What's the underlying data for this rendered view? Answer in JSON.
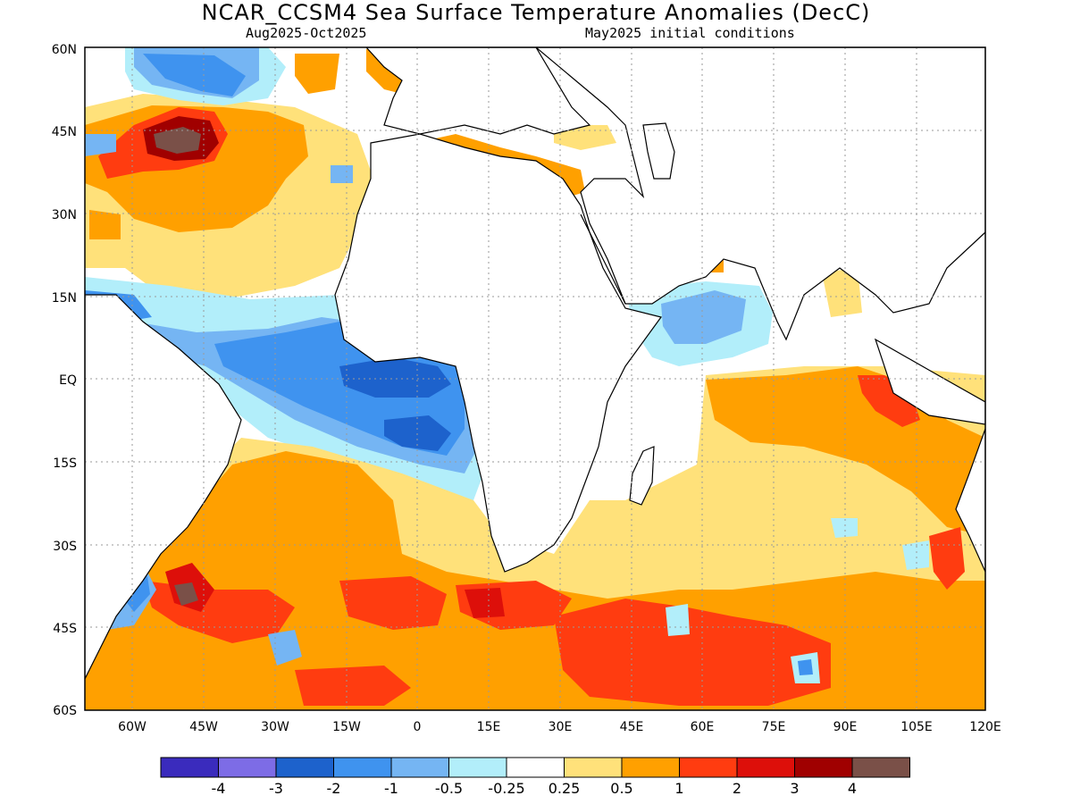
{
  "title": "NCAR_CCSM4 Sea Surface Temperature Anomalies (DecC)",
  "subtitle_left": "Aug2025-Oct2025",
  "subtitle_right": "May2025 initial conditions",
  "lat_labels": [
    "60N",
    "45N",
    "30N",
    "15N",
    "EQ",
    "15S",
    "30S",
    "45S",
    "60S"
  ],
  "lon_labels": [
    "60W",
    "45W",
    "30W",
    "15W",
    "0",
    "15E",
    "30E",
    "45E",
    "60E",
    "75E",
    "90E",
    "105E",
    "120E"
  ],
  "colorbar": {
    "colors": [
      "#3a2bbd",
      "#7d6ce6",
      "#1d62cc",
      "#3f93ef",
      "#75b5f3",
      "#b2eefa",
      "#ffffff",
      "#ffe17a",
      "#ffa000",
      "#ff3c10",
      "#dd0f0a",
      "#a00000",
      "#7a5048"
    ],
    "tick_labels": [
      "-4",
      "-3",
      "-2",
      "-1",
      "-0.5",
      "-0.25",
      "0.25",
      "0.5",
      "1",
      "2",
      "3",
      "4"
    ]
  },
  "map_colors": {
    "land": "#ffffff",
    "coast": "#000000",
    "grid": "#9a9a9a"
  }
}
